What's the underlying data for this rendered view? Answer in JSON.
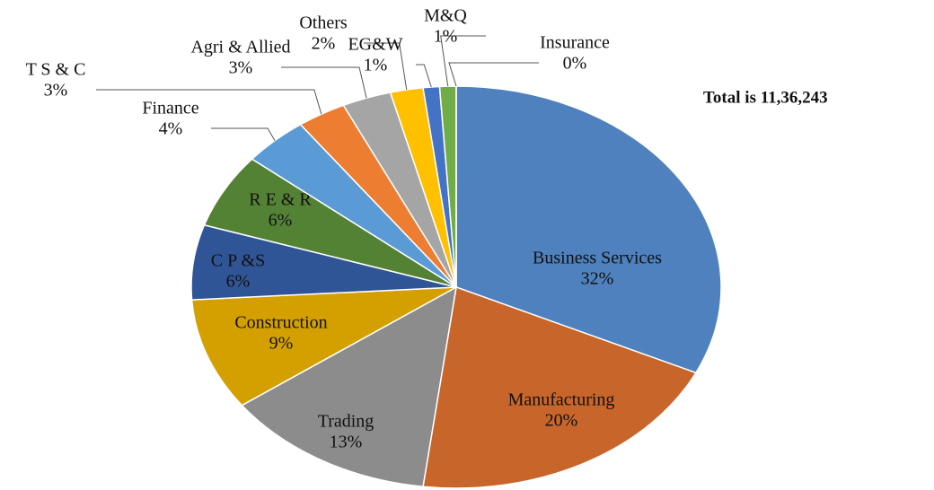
{
  "chart_data": {
    "type": "pie",
    "annotation": "Total is 11,36,243",
    "categories": [
      "Business Services",
      "Manufacturing",
      "Trading",
      "Construction",
      "C P &S",
      "R E & R",
      "Finance",
      "T S  & C",
      "Agri & Allied",
      "Others",
      "EG&W",
      "M&Q",
      "Insurance"
    ],
    "values": [
      32,
      20,
      13,
      9,
      6,
      6,
      4,
      3,
      3,
      2,
      1,
      1,
      0
    ],
    "value_labels": [
      "32%",
      "20%",
      "13%",
      "9%",
      "6%",
      "6%",
      "4%",
      "3%",
      "3%",
      "2%",
      "1%",
      "1%",
      "0%"
    ],
    "colors": [
      "#4e81bd",
      "#c8652a",
      "#8c8c8c",
      "#d4a000",
      "#2f5597",
      "#548235",
      "#5b9bd5",
      "#ed7d31",
      "#a5a5a5",
      "#ffc000",
      "#4472c4",
      "#70ad47",
      "#9e9e9e"
    ]
  }
}
